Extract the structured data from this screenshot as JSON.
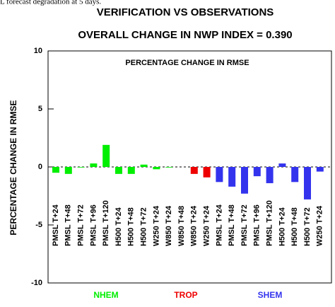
{
  "caption": "L forecast degradation at 5 days.",
  "chart_data": {
    "type": "bar",
    "title": "VERIFICATION VS OBSERVATIONS",
    "subtitle": "OVERALL CHANGE IN NWP INDEX =  0.390",
    "plot_title": "PERCENTAGE CHANGE IN RMSE",
    "y_label": "PERCENTAGE CHANGE IN RMSE",
    "categories": [
      "PMSL T+24",
      "PMSL T+48",
      "PMSL T+72",
      "PMSL T+96",
      "PMSL T+120",
      "H500 T+24",
      "H500 T+48",
      "H500 T+72",
      "W250 T+24",
      "W850 T+24",
      "W850 T+48",
      "W850 T+24",
      "W250 T+24",
      "PMSL T+24",
      "PMSL T+48",
      "PMSL T+72",
      "PMSL T+96",
      "PMSL T+120",
      "H500 T+24",
      "H500 T+48",
      "H500 T+72",
      "W250 T+24"
    ],
    "values": [
      -0.5,
      -0.6,
      -0.05,
      0.3,
      1.9,
      -0.6,
      -0.6,
      0.2,
      -0.2,
      -0.05,
      0,
      -0.6,
      -0.9,
      -1.3,
      -1.7,
      -2.3,
      -0.8,
      -1.4,
      0.3,
      -1.3,
      -2.8,
      -0.4
    ],
    "colors": [
      "#00ee00",
      "#00ee00",
      "#00ee00",
      "#00ee00",
      "#00ee00",
      "#00ee00",
      "#00ee00",
      "#00ee00",
      "#00ee00",
      "#00ee00",
      "#00ee00",
      "#ee0000",
      "#ee0000",
      "#3333ee",
      "#3333ee",
      "#3333ee",
      "#3333ee",
      "#3333ee",
      "#3333ee",
      "#3333ee",
      "#3333ee",
      "#3333ee"
    ],
    "groups": [
      {
        "name": "NHEM",
        "color": "#00ee00"
      },
      {
        "name": "TROP",
        "color": "#ee0000"
      },
      {
        "name": "SHEM",
        "color": "#3333ee"
      }
    ],
    "ylim": [
      -10,
      10
    ],
    "yticks": [
      -10,
      -5,
      0,
      5,
      10
    ]
  }
}
